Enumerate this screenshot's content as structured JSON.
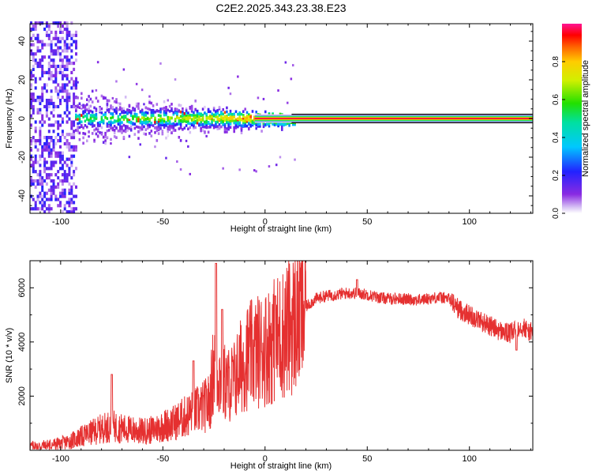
{
  "title": "C2E2.2025.343.23.38.E23",
  "colors": {
    "snr_line": "#e53030",
    "axis": "#000000",
    "background": "#ffffff"
  },
  "chart_data": [
    {
      "type": "heatmap",
      "title": "C2E2.2025.343.23.38.E23",
      "xlabel": "Height of straight line (km)",
      "ylabel": "Frequency (Hz)",
      "xlim": [
        -115,
        131
      ],
      "ylim": [
        -49,
        49
      ],
      "xticks": [
        -100,
        -50,
        0,
        50,
        100
      ],
      "xtick_labels": [
        "-100",
        "-50",
        "0",
        "50",
        "100"
      ],
      "yticks": [
        -40,
        -20,
        0,
        20,
        40
      ],
      "ytick_labels": [
        "-40",
        "-20",
        "0",
        "20",
        "40"
      ],
      "colorbar": {
        "label": "Normalized spectral amplitude",
        "range": [
          0,
          1
        ],
        "ticks": [
          0.0,
          0.2,
          0.4,
          0.6,
          0.8
        ],
        "tick_labels": [
          "0.0",
          "0.2",
          "0.4",
          "0.6",
          "0.8"
        ],
        "colormap": "rainbow (violet to magenta)"
      },
      "regions": [
        {
          "name": "noise",
          "x": [
            -115,
            -93
          ],
          "freq_spread": 49,
          "amplitude": 0.15
        },
        {
          "name": "transition",
          "x": [
            -93,
            15
          ],
          "freq_spread": 6,
          "amplitude": 0.55
        },
        {
          "name": "carrier",
          "x": [
            15,
            131
          ],
          "freq_center": 0,
          "freq_spread": 1.5,
          "amplitude": 1.0
        }
      ]
    },
    {
      "type": "line",
      "xlabel": "Height of straight line (km)",
      "ylabel": "SNR (10 * v/v)",
      "xlim": [
        -115,
        131
      ],
      "ylim": [
        0,
        7000
      ],
      "xticks": [
        -100,
        -50,
        0,
        50,
        100
      ],
      "xtick_labels": [
        "-100",
        "-50",
        "0",
        "50",
        "100"
      ],
      "yticks": [
        2000,
        4000,
        6000
      ],
      "ytick_labels": [
        "2000",
        "4000",
        "6000"
      ],
      "series": [
        {
          "name": "SNR",
          "x": [
            -115,
            -110,
            -105,
            -100,
            -95,
            -90,
            -85,
            -80,
            -75,
            -70,
            -65,
            -60,
            -55,
            -50,
            -45,
            -40,
            -35,
            -30,
            -27,
            -25,
            -23,
            -21,
            -18,
            -15,
            -10,
            -5,
            0,
            5,
            10,
            15,
            20,
            25,
            30,
            35,
            40,
            45,
            50,
            55,
            60,
            65,
            70,
            75,
            80,
            85,
            90,
            95,
            100,
            105,
            110,
            115,
            120,
            125,
            131
          ],
          "values": [
            150,
            160,
            200,
            250,
            350,
            500,
            650,
            800,
            900,
            800,
            750,
            700,
            750,
            900,
            1000,
            1200,
            1400,
            1600,
            1800,
            3200,
            2800,
            2600,
            2400,
            2600,
            3400,
            3600,
            3800,
            4100,
            4400,
            4800,
            5300,
            5600,
            5700,
            5750,
            5800,
            5800,
            5750,
            5650,
            5600,
            5600,
            5580,
            5550,
            5600,
            5650,
            5600,
            5200,
            5000,
            4800,
            4600,
            4400,
            4300,
            4600,
            4300
          ],
          "spikes": [
            {
              "x": -24,
              "value": 6900
            },
            {
              "x": -21,
              "value": 5200
            },
            {
              "x": -75,
              "value": 2800
            },
            {
              "x": -35,
              "value": 3300
            },
            {
              "x": 5,
              "value": 5700
            },
            {
              "x": 45,
              "value": 6300
            },
            {
              "x": 123,
              "value": 3700
            }
          ],
          "noise_amplitude": "large, roughly proportional to signal"
        }
      ]
    }
  ]
}
